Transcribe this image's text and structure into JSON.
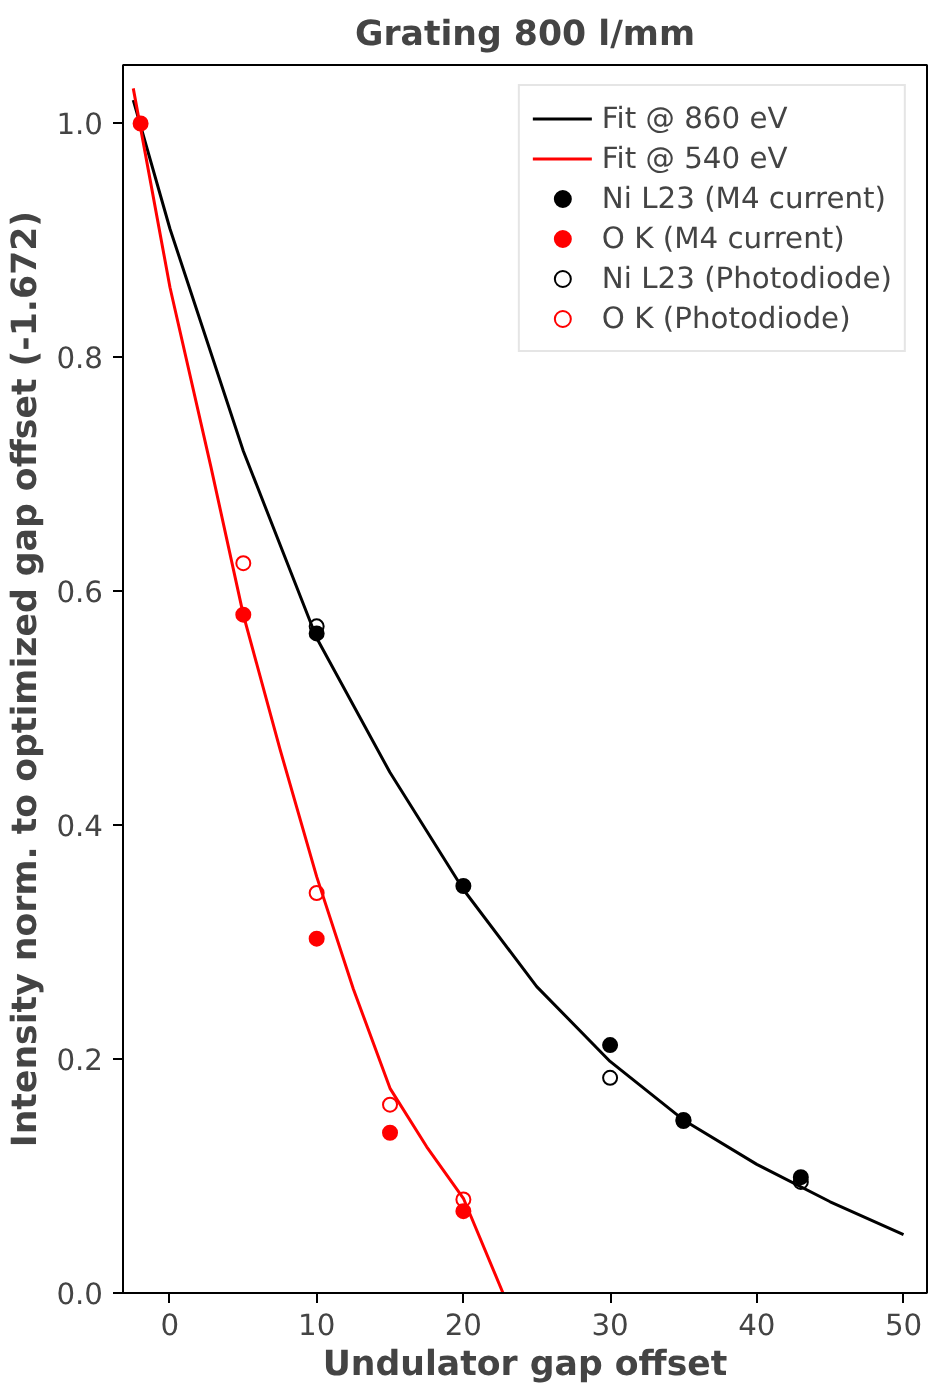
{
  "chart_data": {
    "type": "scatter",
    "title": "Grating 800 l/mm",
    "xlabel": "Undulator gap offset",
    "ylabel": "Intensity norm. to optimized gap offset (-1.672)",
    "xlim": [
      -3.2,
      51.6
    ],
    "ylim": [
      0,
      1.05
    ],
    "xticks": [
      0,
      10,
      20,
      30,
      40,
      50
    ],
    "yticks": [
      {
        "value": 0,
        "label": "0.0"
      },
      0.2,
      0.4,
      0.6,
      0.8,
      {
        "value": 1,
        "label": "1.0"
      }
    ],
    "legend": "top right",
    "grid": false,
    "series": [
      {
        "name": "Fit @ 860 eV",
        "type": "line",
        "marker": "none",
        "color": "#000000",
        "x": [
          -2.5,
          0,
          5,
          10,
          15,
          20,
          25,
          30,
          35,
          40,
          45,
          50
        ],
        "values": [
          1.02,
          0.91,
          0.72,
          0.56,
          0.445,
          0.345,
          0.262,
          0.198,
          0.148,
          0.11,
          0.078,
          0.05
        ]
      },
      {
        "name": "Fit @ 540 eV",
        "type": "line",
        "marker": "none",
        "color": "#ff0000",
        "x": [
          -2.5,
          0,
          2.8,
          5,
          7.5,
          10,
          12.5,
          15,
          17.5,
          20,
          22.7
        ],
        "values": [
          1.03,
          0.86,
          0.706,
          0.58,
          0.465,
          0.356,
          0.26,
          0.175,
          0.125,
          0.081,
          0.0
        ]
      },
      {
        "name": "Ni L23 (M4 current)",
        "marker": "circle",
        "color": "#000000",
        "x": [
          10,
          20,
          30,
          35,
          43
        ],
        "values": [
          0.564,
          0.348,
          0.212,
          0.147,
          0.099
        ]
      },
      {
        "name": "O K (M4 current)",
        "marker": "circle",
        "color": "#ff0000",
        "x": [
          -2,
          5,
          10,
          15,
          20
        ],
        "values": [
          1.0,
          0.58,
          0.303,
          0.137,
          0.07
        ]
      },
      {
        "name": "Ni L23 (Photodiode)",
        "marker": "open circle",
        "color": "#000000",
        "x": [
          10,
          30,
          35,
          43
        ],
        "values": [
          0.57,
          0.184,
          0.148,
          0.095
        ]
      },
      {
        "name": "O K (Photodiode)",
        "marker": "open circle",
        "color": "#ff0000",
        "x": [
          5,
          10,
          15,
          20
        ],
        "values": [
          0.624,
          0.342,
          0.161,
          0.08
        ]
      }
    ]
  }
}
